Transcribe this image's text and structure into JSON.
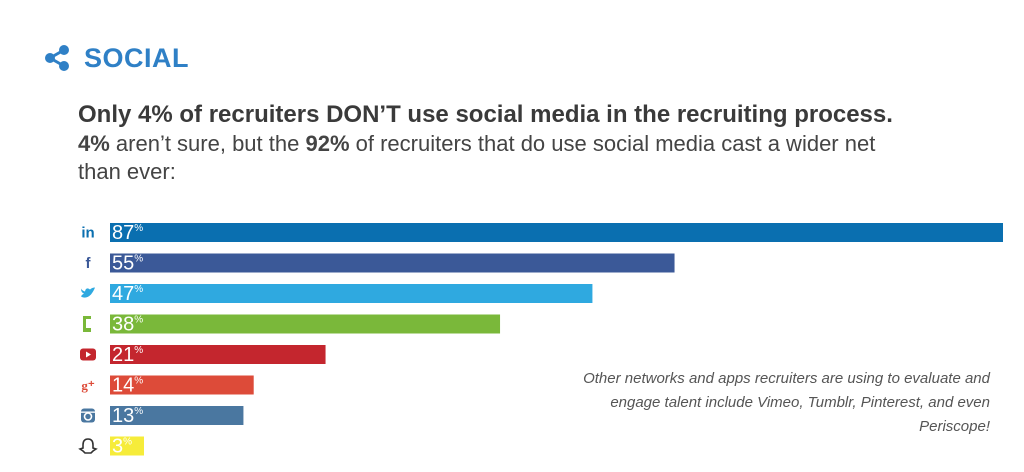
{
  "header": {
    "section_title": "SOCIAL",
    "icon": "share-icon",
    "accent_color": "#2f80c6"
  },
  "headline": {
    "line1": "Only 4% of recruiters DON’T use social media in the recruiting process.",
    "line2_part1": "4%",
    "line2_part2": " aren’t sure, but the ",
    "line2_part3": "92%",
    "line2_part4": " of recruiters that do use social media cast a wider net than ever:"
  },
  "chart_data": {
    "type": "bar",
    "orientation": "horizontal",
    "categories": [
      "LinkedIn",
      "Facebook",
      "Twitter",
      "Glassdoor",
      "YouTube",
      "Google+",
      "Instagram",
      "Snapchat"
    ],
    "category_icons": [
      "linkedin-icon",
      "facebook-icon",
      "twitter-icon",
      "glassdoor-icon",
      "youtube-icon",
      "google-plus-icon",
      "instagram-icon",
      "snapchat-icon"
    ],
    "values": [
      87,
      55,
      47,
      38,
      21,
      14,
      13,
      3
    ],
    "value_unit": "%",
    "colors": [
      "#0a6fb0",
      "#3b5998",
      "#2fa9e0",
      "#7ab83a",
      "#c4262e",
      "#dd4b39",
      "#4a77a0",
      "#f6ec3a"
    ],
    "xlim": [
      0,
      87
    ],
    "grid": false,
    "legend": "none"
  },
  "note": {
    "text": "Other networks and apps recruiters are using to evaluate and engage talent include Vimeo, Tumblr, Pinterest, and even Periscope!"
  }
}
